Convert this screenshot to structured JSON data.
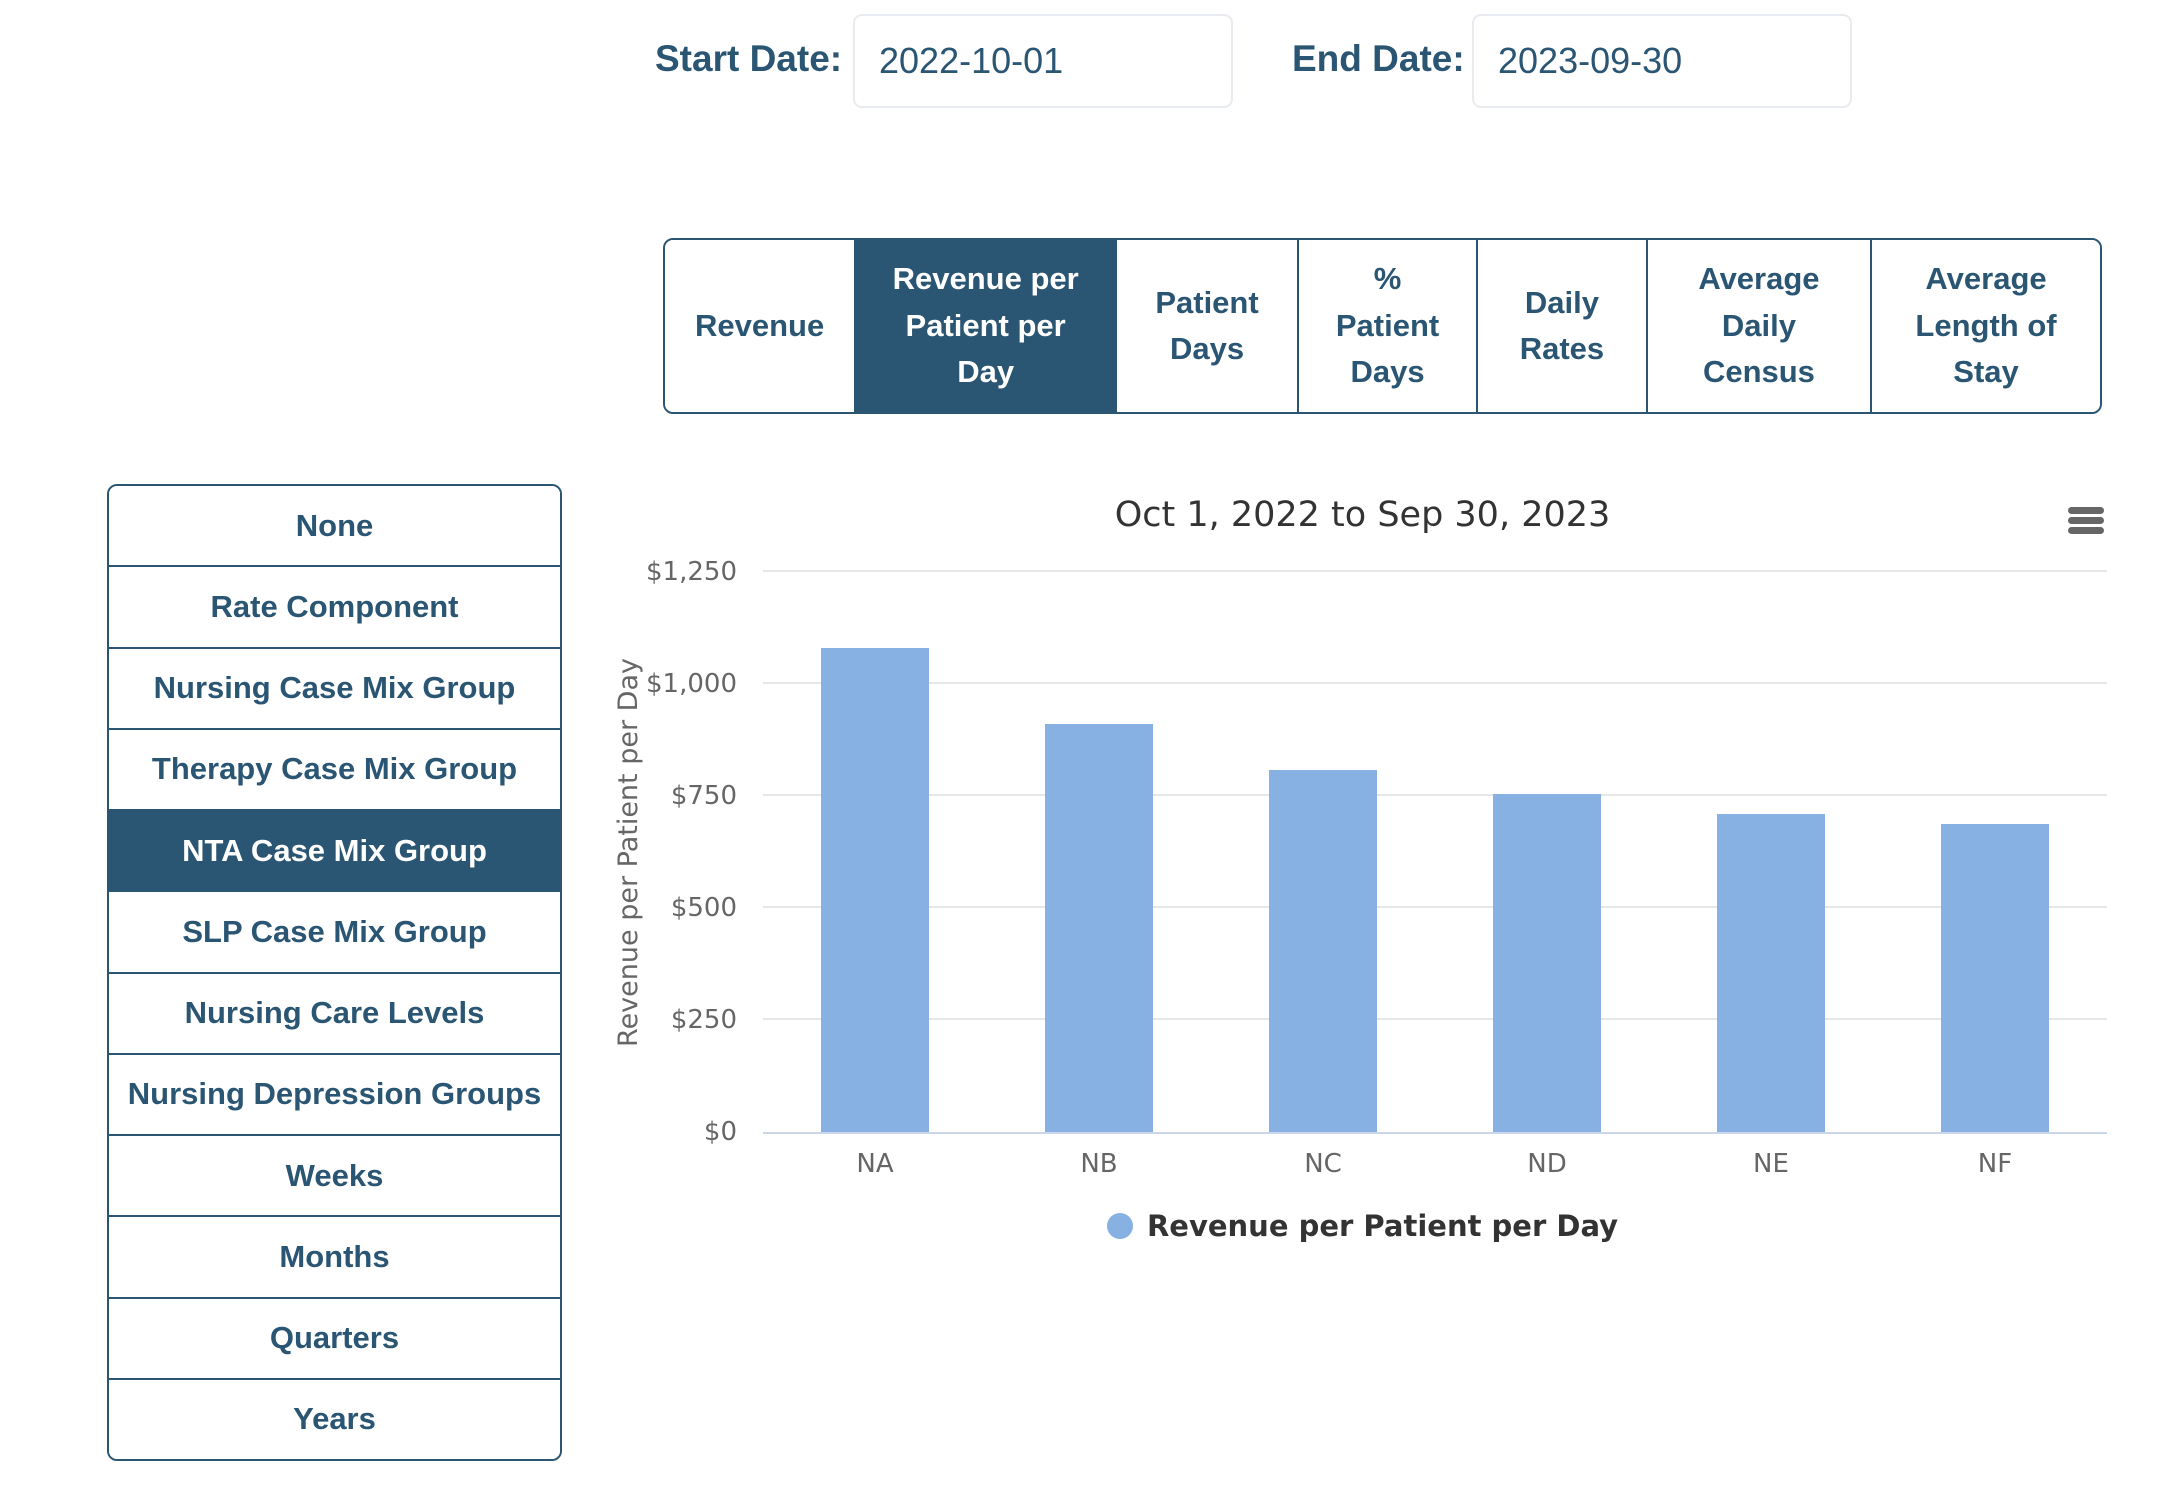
{
  "header": {
    "start_date_label": "Start Date:",
    "start_date_value": "2022-10-01",
    "end_date_label": "End Date:",
    "end_date_value": "2023-09-30"
  },
  "tabs": [
    {
      "label": "Revenue",
      "selected": false
    },
    {
      "label": "Revenue per Patient per Day",
      "selected": true
    },
    {
      "label": "Patient Days",
      "selected": false
    },
    {
      "label": "% Patient Days",
      "selected": false
    },
    {
      "label": "Daily Rates",
      "selected": false
    },
    {
      "label": "Average Daily Census",
      "selected": false
    },
    {
      "label": "Average Length of Stay",
      "selected": false
    }
  ],
  "sidebar": {
    "items": [
      {
        "label": "None",
        "selected": false
      },
      {
        "label": "Rate Component",
        "selected": false
      },
      {
        "label": "Nursing Case Mix Group",
        "selected": false
      },
      {
        "label": "Therapy Case Mix Group",
        "selected": false
      },
      {
        "label": "NTA Case Mix Group",
        "selected": true
      },
      {
        "label": "SLP Case Mix Group",
        "selected": false
      },
      {
        "label": "Nursing Care Levels",
        "selected": false
      },
      {
        "label": "Nursing Depression Groups",
        "selected": false
      },
      {
        "label": "Weeks",
        "selected": false
      },
      {
        "label": "Months",
        "selected": false
      },
      {
        "label": "Quarters",
        "selected": false
      },
      {
        "label": "Years",
        "selected": false
      }
    ]
  },
  "chart_data": {
    "type": "bar",
    "title": "Oct 1, 2022 to Sep 30, 2023",
    "categories": [
      "NA",
      "NB",
      "NC",
      "ND",
      "NE",
      "NF"
    ],
    "values": [
      1080,
      911,
      808,
      754,
      710,
      687
    ],
    "series": [
      {
        "name": "Revenue per Patient per Day",
        "values": [
          1080,
          911,
          808,
          754,
          710,
          687
        ]
      }
    ],
    "series_name": "Revenue per Patient per Day",
    "xlabel": "",
    "ylabel": "Revenue per Patient per Day",
    "ylim": [
      0,
      1250
    ],
    "yticks": [
      {
        "value": 0,
        "label": "$0"
      },
      {
        "value": 250,
        "label": "$250"
      },
      {
        "value": 500,
        "label": "$500"
      },
      {
        "value": 750,
        "label": "$750"
      },
      {
        "value": 1000,
        "label": "$1,000"
      },
      {
        "value": 1250,
        "label": "$1,250"
      }
    ],
    "grid": true,
    "legend_position": "bottom",
    "bar_color": "#87b1e3"
  },
  "icons": {
    "chart_menu": "hamburger-menu-icon"
  },
  "colors": {
    "accent": "#2a5674",
    "selected_bg": "#2a5674",
    "selected_text": "#ffffff",
    "bar": "#87b1e3",
    "chart_title_text": "#333333",
    "axis_text": "#666666",
    "gridline": "#e7e7e7",
    "axis_line": "#ccd6eb",
    "input_border": "#e8ebef"
  }
}
